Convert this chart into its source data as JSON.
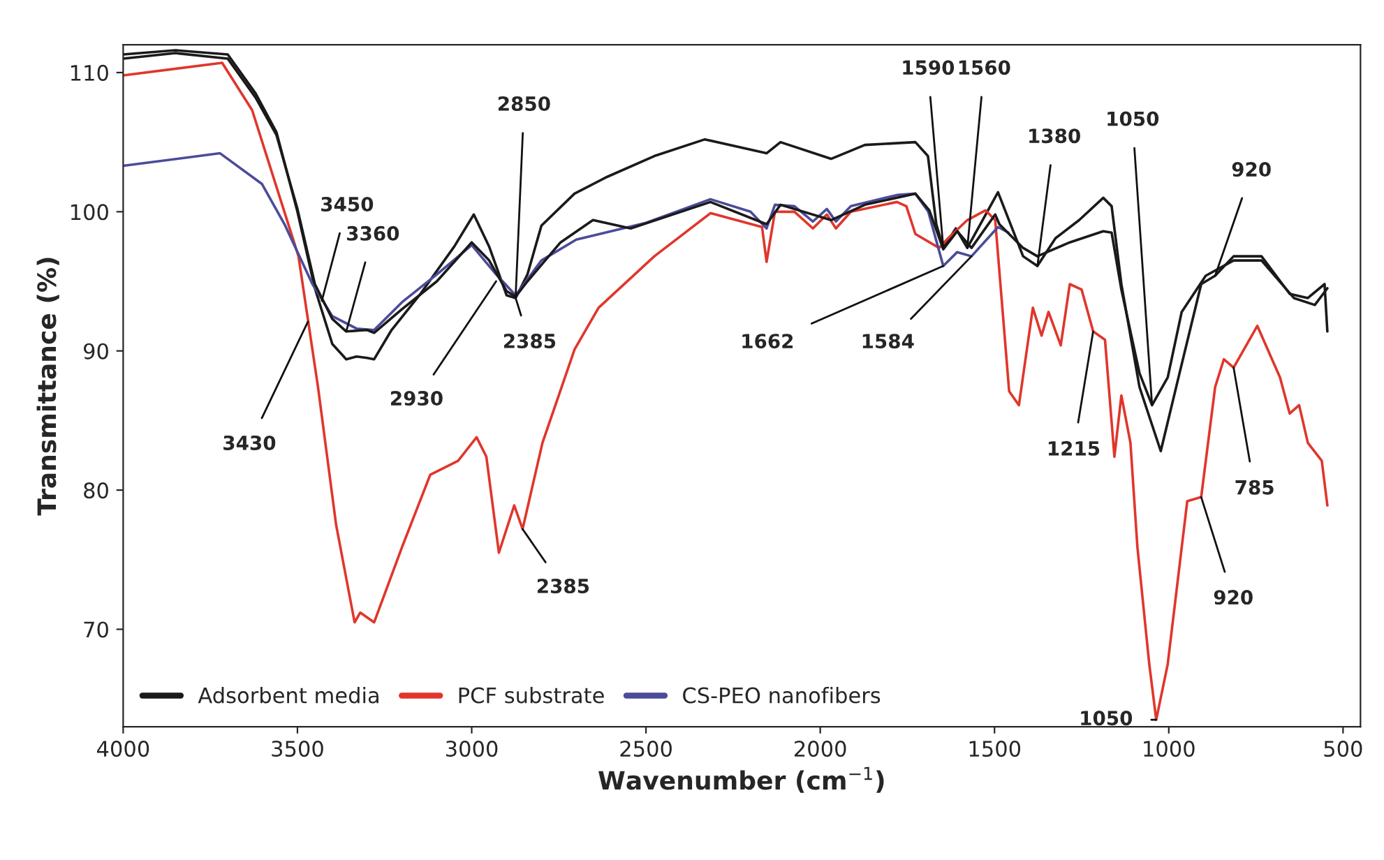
{
  "chart_data": {
    "type": "line",
    "xlabel": "Wavenumber (cm$^{−1}$)",
    "ylabel": "Transmittance (%)",
    "xlim": [
      4000,
      450
    ],
    "xticks": [
      4000,
      3500,
      3000,
      2500,
      2000,
      1500,
      1000,
      500
    ],
    "ylim": [
      63,
      112
    ],
    "yticks": [
      70,
      80,
      90,
      100,
      110
    ],
    "grid": false,
    "legend": "bottom left",
    "line_style": "solid",
    "marker": "none",
    "series": [
      {
        "name": "Adsorbent media",
        "color": "#1a1a1a",
        "x": [
          4000,
          3850,
          3700,
          3620,
          3560,
          3500,
          3450,
          3400,
          3360,
          3330,
          3300,
          3280,
          3230,
          3150,
          3050,
          2994,
          2950,
          2900,
          2874,
          2840,
          2800,
          2705,
          2612,
          2476,
          2331,
          2154,
          2114,
          1969,
          1872,
          1727,
          1691,
          1667,
          1647,
          1611,
          1578,
          1490,
          1418,
          1377,
          1325,
          1257,
          1188,
          1164,
          1136,
          1084,
          1023,
          975,
          907,
          867,
          814,
          734,
          653,
          601,
          553,
          545
        ],
        "values": [
          111.3,
          111.6,
          111.3,
          108.5,
          105.7,
          100,
          94.5,
          90.5,
          89.4,
          89.6,
          89.5,
          89.4,
          91.5,
          94,
          97.5,
          99.8,
          97.5,
          94.0,
          93.8,
          95.5,
          99,
          101.3,
          102.5,
          104.0,
          105.2,
          104.2,
          105.0,
          103.8,
          104.8,
          105.0,
          104.0,
          99.1,
          97.4,
          98.8,
          97.4,
          101.4,
          96.8,
          96.1,
          98.1,
          99.4,
          101.0,
          100.4,
          94.8,
          87.4,
          82.8,
          87.8,
          94.8,
          95.4,
          96.8,
          96.8,
          94.1,
          93.8,
          94.8,
          91.4
        ]
      },
      {
        "name": "PCF substrate",
        "color": "#e0362c",
        "x": [
          4000,
          3716,
          3630,
          3497,
          3441,
          3389,
          3336,
          3320,
          3280,
          3200,
          3119,
          3039,
          2986,
          2958,
          2922,
          2878,
          2854,
          2797,
          2705,
          2636,
          2476,
          2315,
          2167,
          2154,
          2130,
          2074,
          2021,
          1981,
          1955,
          1912,
          1780,
          1753,
          1727,
          1659,
          1633,
          1578,
          1526,
          1498,
          1458,
          1430,
          1390,
          1365,
          1345,
          1310,
          1284,
          1250,
          1217,
          1183,
          1156,
          1136,
          1110,
          1090,
          1056,
          1036,
          1003,
          947,
          907,
          867,
          842,
          814,
          746,
          681,
          653,
          626,
          601,
          561,
          545
        ],
        "values": [
          109.8,
          110.7,
          107.3,
          96.8,
          87.4,
          77.5,
          70.5,
          71.2,
          70.5,
          75.9,
          81.1,
          82.1,
          83.8,
          82.4,
          75.5,
          78.9,
          77.2,
          83.4,
          90.1,
          93.1,
          96.8,
          99.9,
          98.9,
          96.4,
          100.0,
          100.0,
          98.8,
          99.8,
          98.8,
          100.0,
          100.7,
          100.4,
          98.4,
          97.4,
          98.1,
          99.4,
          100.1,
          99.4,
          87.1,
          86.1,
          93.1,
          91.1,
          92.8,
          90.4,
          94.8,
          94.4,
          91.4,
          90.8,
          82.4,
          86.8,
          83.4,
          75.9,
          67.5,
          63.5,
          67.5,
          79.2,
          79.5,
          87.4,
          89.4,
          88.8,
          91.8,
          88.1,
          85.5,
          86.1,
          83.4,
          82.1,
          78.9
        ]
      },
      {
        "name": "CS-PEO nanofibers",
        "color": "#4b4b9a",
        "x": [
          4000,
          3722,
          3602,
          3537,
          3457,
          3400,
          3330,
          3280,
          3200,
          3100,
          3000,
          2930,
          2874,
          2800,
          2700,
          2500,
          2315,
          2200,
          2154,
          2130,
          2074,
          2021,
          1981,
          1955,
          1912,
          1780,
          1727,
          1690,
          1647,
          1607,
          1566,
          1490,
          1460
        ],
        "values": [
          103.3,
          104.2,
          102.0,
          99.1,
          94.8,
          92.5,
          91.6,
          91.5,
          93.5,
          95.5,
          97.6,
          95.5,
          94.0,
          96.5,
          98.0,
          99.2,
          100.9,
          100.0,
          98.8,
          100.5,
          100.4,
          99.3,
          100.2,
          99.3,
          100.4,
          101.2,
          101.3,
          100.0,
          96.1,
          97.1,
          96.8,
          98.9,
          98.5
        ]
      },
      {
        "color": "#1a1a1a",
        "x": [
          4000,
          3850,
          3700,
          3620,
          3560,
          3500,
          3450,
          3400,
          3360,
          3300,
          3280,
          3200,
          3100,
          3000,
          2950,
          2900,
          2874,
          2840,
          2745,
          2652,
          2544,
          2315,
          2154,
          2114,
          1969,
          1872,
          1727,
          1687,
          1647,
          1607,
          1566,
          1498,
          1486,
          1418,
          1377,
          1284,
          1188,
          1164,
          1136,
          1084,
          1048,
          1003,
          963,
          894,
          814,
          734,
          641,
          581,
          545
        ],
        "values": [
          111.0,
          111.4,
          111.0,
          108.2,
          105.5,
          100.2,
          94.8,
          92.3,
          91.4,
          91.5,
          91.3,
          93.0,
          95.0,
          97.8,
          96.5,
          94.3,
          93.9,
          95.0,
          97.8,
          99.4,
          98.8,
          100.7,
          99.1,
          100.5,
          99.4,
          100.5,
          101.3,
          100.1,
          97.3,
          98.6,
          97.4,
          99.8,
          99.1,
          97.4,
          96.8,
          97.8,
          98.6,
          98.5,
          94.4,
          88.4,
          86.1,
          88.1,
          92.8,
          95.4,
          96.5,
          96.5,
          93.8,
          93.3,
          94.5
        ]
      }
    ],
    "annotations": [
      {
        "text": "3450",
        "x": 3430,
        "y": 93.6
      },
      {
        "text": "3360",
        "x": 3360,
        "y": 91.4
      },
      {
        "text": "3430",
        "x": 3470,
        "y": 92.1
      },
      {
        "text": "2850",
        "x": 2874,
        "y": 93.9
      },
      {
        "text": "2930",
        "x": 2930,
        "y": 95.0
      },
      {
        "text": "2385",
        "x": 2874,
        "y": 93.8
      },
      {
        "text": "2385",
        "x": 2854,
        "y": 77.2
      },
      {
        "text": "1590",
        "x": 1647,
        "y": 97.4
      },
      {
        "text": "1560",
        "x": 1578,
        "y": 97.4
      },
      {
        "text": "1662",
        "x": 1647,
        "y": 96.1
      },
      {
        "text": "1584",
        "x": 1566,
        "y": 96.8
      },
      {
        "text": "1380",
        "x": 1377,
        "y": 96.1
      },
      {
        "text": "1050",
        "x": 1048,
        "y": 86.1
      },
      {
        "text": "920",
        "x": 867,
        "y": 95.4
      },
      {
        "text": "1215",
        "x": 1217,
        "y": 91.4
      },
      {
        "text": "785",
        "x": 814,
        "y": 88.8
      },
      {
        "text": "920",
        "x": 907,
        "y": 79.5
      },
      {
        "text": "1050",
        "x": 1036,
        "y": 63.5
      }
    ]
  }
}
